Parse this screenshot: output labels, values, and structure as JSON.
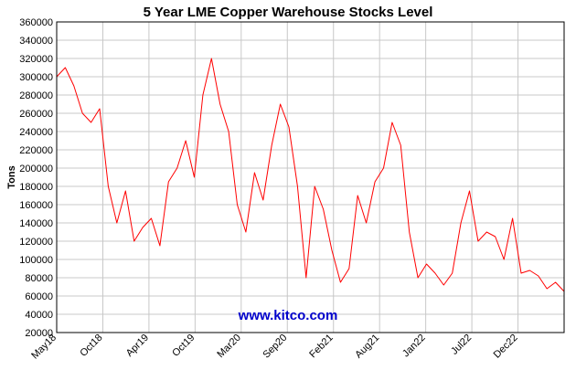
{
  "chart_data": {
    "type": "line",
    "title": "5 Year LME Copper Warehouse Stocks Level",
    "ylabel": "Tons",
    "xlabel": "",
    "ylim": [
      20000,
      360000
    ],
    "y_ticks": [
      20000,
      40000,
      60000,
      80000,
      100000,
      120000,
      140000,
      160000,
      180000,
      200000,
      220000,
      240000,
      260000,
      280000,
      300000,
      320000,
      340000,
      360000
    ],
    "x_ticks": [
      "May18",
      "Oct18",
      "Apr19",
      "Oct19",
      "Mar20",
      "Sep20",
      "Feb21",
      "Aug21",
      "Jan22",
      "Jul22",
      "Dec22"
    ],
    "grid": true,
    "watermark": "www.kitco.com",
    "line_color": "#ff0000",
    "watermark_color": "#0000cc",
    "series": [
      {
        "x": [
          "May18",
          "Jun18",
          "Jul18",
          "Aug18",
          "Sep18",
          "Oct18",
          "Nov18",
          "Dec18",
          "Jan19",
          "Feb19",
          "Mar19",
          "Apr19",
          "May19",
          "Jun19",
          "Jul19",
          "Aug19",
          "Sep19",
          "Oct19",
          "Nov19",
          "Dec19",
          "Jan20",
          "Feb20",
          "Mar20",
          "Apr20",
          "May20",
          "Jun20",
          "Jul20",
          "Aug20",
          "Sep20",
          "Oct20",
          "Nov20",
          "Dec20",
          "Jan21",
          "Feb21",
          "Mar21",
          "Apr21",
          "May21",
          "Jun21",
          "Jul21",
          "Aug21",
          "Sep21",
          "Oct21",
          "Nov21",
          "Dec21",
          "Jan22",
          "Feb22",
          "Mar22",
          "Apr22",
          "May22",
          "Jun22",
          "Jul22",
          "Aug22",
          "Sep22",
          "Oct22",
          "Nov22",
          "Dec22",
          "Jan23",
          "Feb23",
          "Mar23",
          "Apr23"
        ],
        "values": [
          300000,
          310000,
          290000,
          260000,
          250000,
          265000,
          180000,
          140000,
          175000,
          120000,
          135000,
          145000,
          115000,
          185000,
          200000,
          230000,
          190000,
          280000,
          320000,
          270000,
          240000,
          160000,
          130000,
          195000,
          165000,
          225000,
          270000,
          245000,
          180000,
          80000,
          180000,
          155000,
          110000,
          75000,
          90000,
          170000,
          140000,
          185000,
          200000,
          250000,
          225000,
          130000,
          80000,
          95000,
          85000,
          72000,
          85000,
          140000,
          175000,
          120000,
          130000,
          125000,
          100000,
          145000,
          85000,
          88000,
          82000,
          68000,
          75000,
          65000
        ]
      }
    ]
  }
}
